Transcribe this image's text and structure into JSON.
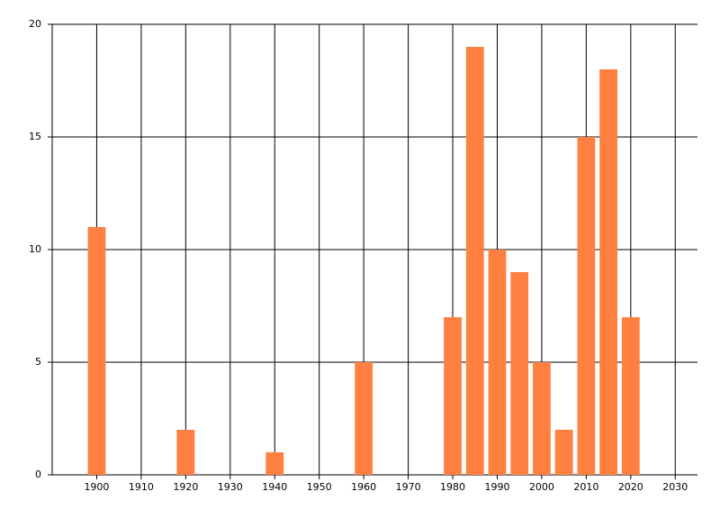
{
  "chart_data": {
    "type": "bar",
    "x": [
      1900,
      1920,
      1940,
      1960,
      1980,
      1985,
      1990,
      1995,
      2000,
      2005,
      2010,
      2015,
      2020
    ],
    "values": [
      11,
      2,
      1,
      5,
      7,
      19,
      10,
      9,
      5,
      2,
      15,
      18,
      7
    ],
    "color": "#ff8040",
    "xlim": [
      1890,
      2035
    ],
    "xticks": [
      1900,
      1910,
      1920,
      1930,
      1940,
      1950,
      1960,
      1970,
      1980,
      1990,
      2000,
      2010,
      2020,
      2030
    ],
    "ylim": [
      0,
      20
    ],
    "yticks": [
      0,
      5,
      10,
      15,
      20
    ],
    "grid": true
  }
}
